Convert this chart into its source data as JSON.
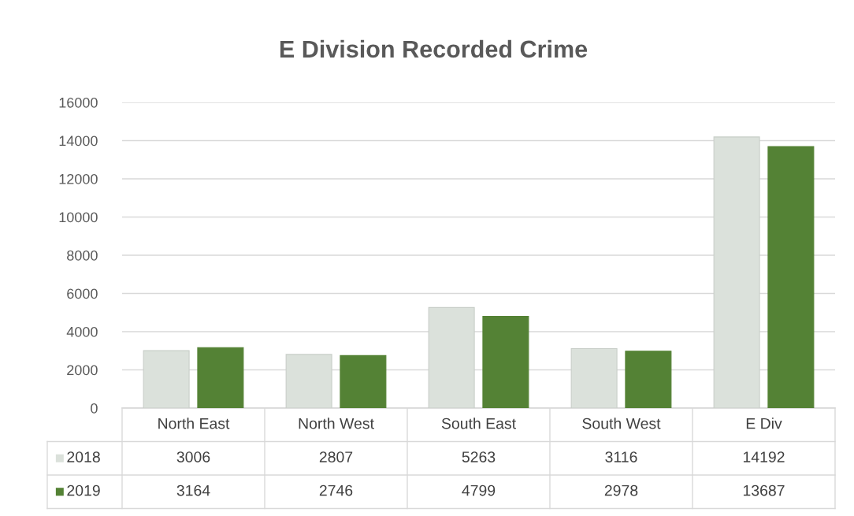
{
  "chart_data": {
    "type": "bar",
    "title": "E Division Recorded Crime",
    "categories": [
      "North East",
      "North West",
      "South East",
      "South West",
      "E Div"
    ],
    "series": [
      {
        "name": "2018",
        "color": "#dbe1db",
        "values": [
          3006,
          2807,
          5263,
          3116,
          14192
        ]
      },
      {
        "name": "2019",
        "color": "#548235",
        "values": [
          3164,
          2746,
          4799,
          2978,
          13687
        ]
      }
    ],
    "ylim": [
      0,
      16000
    ],
    "yticks": [
      0,
      2000,
      4000,
      6000,
      8000,
      10000,
      12000,
      14000,
      16000
    ],
    "grid": "y",
    "legend": "bottom",
    "data_labels": true
  }
}
